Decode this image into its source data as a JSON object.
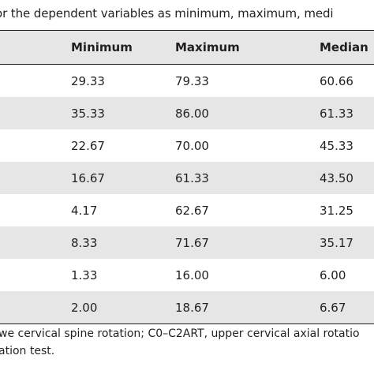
{
  "caption": "or the dependent variables as minimum, maximum, medi",
  "table": {
    "columns": [
      "Minimum",
      "Maximum",
      "Median"
    ],
    "rows": [
      [
        "29.33",
        "79.33",
        "60.66"
      ],
      [
        "35.33",
        "86.00",
        "61.33"
      ],
      [
        "22.67",
        "70.00",
        "45.33"
      ],
      [
        "16.67",
        "61.33",
        "43.50"
      ],
      [
        "4.17",
        "62.67",
        "31.25"
      ],
      [
        "8.33",
        "71.67",
        "35.17"
      ],
      [
        "1.33",
        "16.00",
        "6.00"
      ],
      [
        "2.00",
        "18.67",
        "6.67"
      ]
    ]
  },
  "footnote": {
    "line1": "we cervical spine rotation; C0–C2ART, upper cervical axial rotatio",
    "line2": "ation test."
  }
}
